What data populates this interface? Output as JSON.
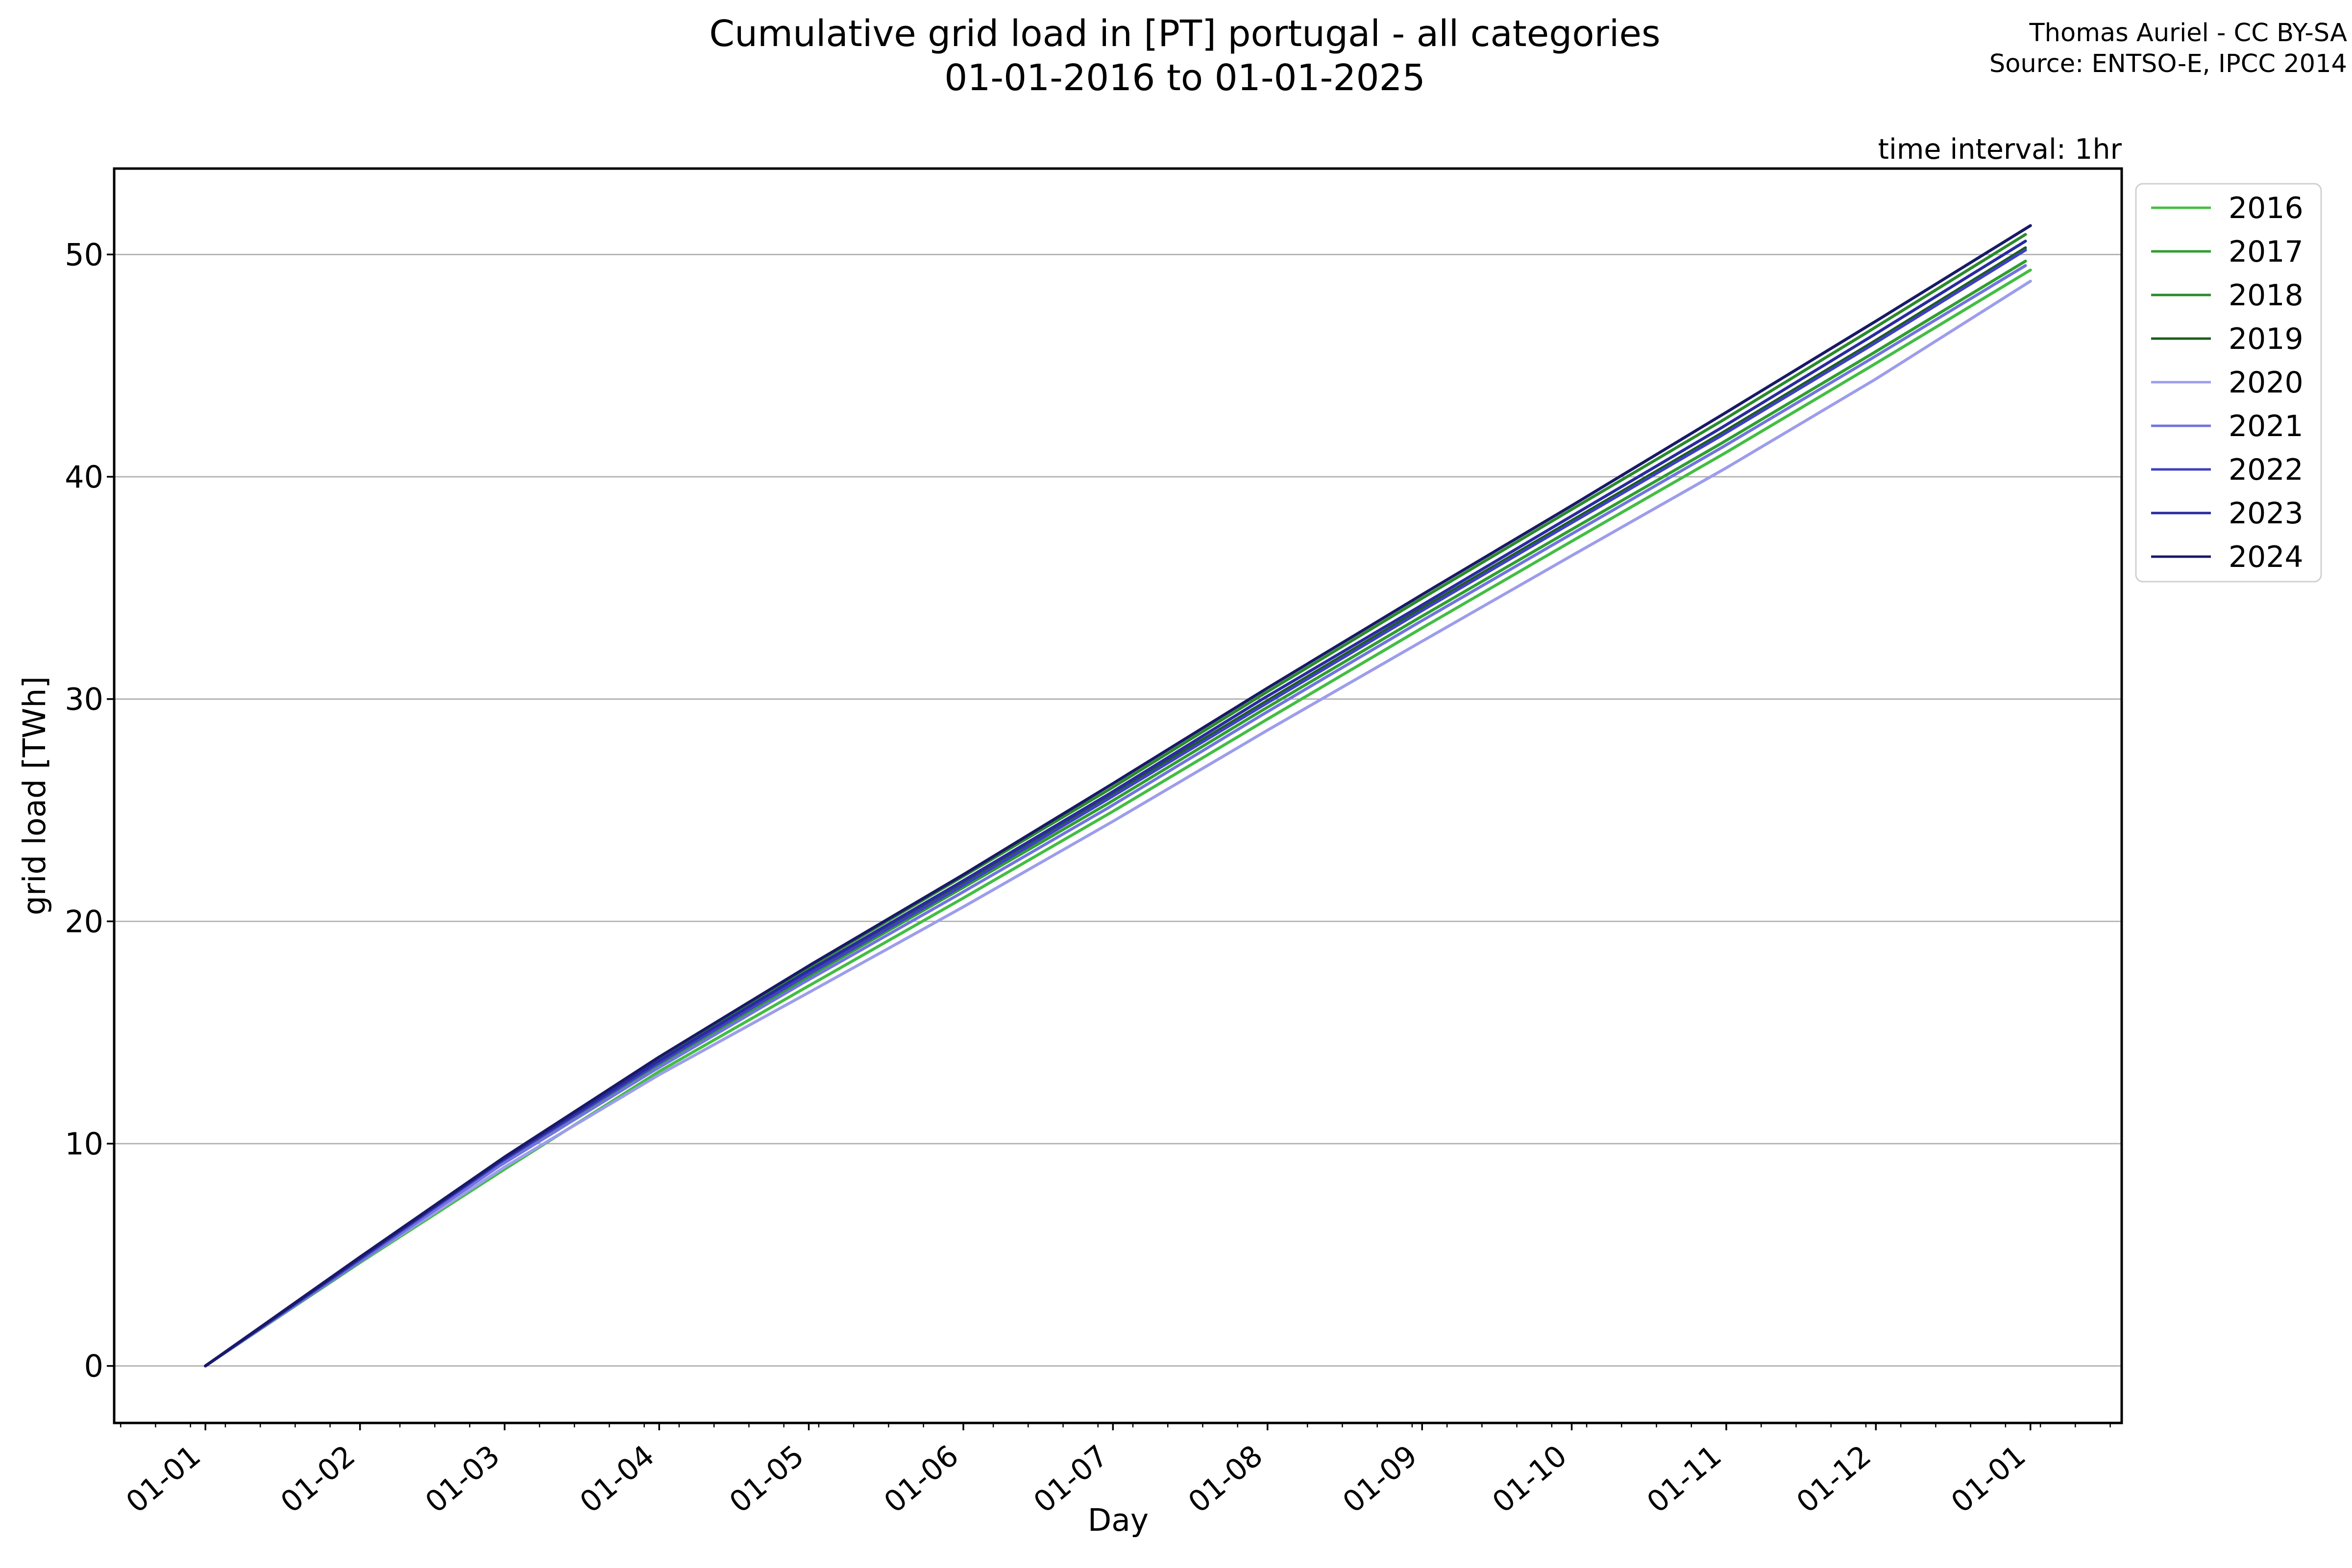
{
  "figure": {
    "title_line1": "Cumulative grid load in [PT] portugal - all categories",
    "title_line2": "01-01-2016 to 01-01-2025",
    "attribution_line1": "Thomas Auriel - CC BY-SA",
    "attribution_line2": "Source: ENTSO-E, IPCC 2014",
    "annotation": "time interval: 1hr"
  },
  "chart_data": {
    "type": "line",
    "title": "Cumulative grid load in [PT] portugal - all categories 01-01-2016 to 01-01-2025",
    "xlabel": "Day",
    "ylabel": "grid load [TWh]",
    "x_tick_labels": [
      "01-01",
      "01-02",
      "01-03",
      "01-04",
      "01-05",
      "01-06",
      "01-07",
      "01-08",
      "01-09",
      "01-10",
      "01-11",
      "01-12",
      "01-01"
    ],
    "x_tick_days": [
      0,
      31,
      60,
      91,
      121,
      152,
      182,
      213,
      244,
      274,
      305,
      335,
      366
    ],
    "y_ticks": [
      0,
      10,
      20,
      30,
      40,
      50
    ],
    "y_tick_labels": [
      "0",
      "10",
      "20",
      "30",
      "40",
      "50"
    ],
    "xlim_days": [
      -18.3,
      384.3
    ],
    "ylim": [
      -2.565,
      53.865
    ],
    "grid": "horizontal gridlines at y ticks",
    "grid_color": "#b0b0b0",
    "legend_position": "outside upper right",
    "minor_x_tick_interval_days": 7,
    "month_start_days_leap": [
      0,
      31,
      60,
      91,
      121,
      152,
      182,
      213,
      244,
      274,
      305,
      335,
      366
    ],
    "month_start_days_common": [
      0,
      31,
      59,
      90,
      120,
      151,
      181,
      212,
      243,
      273,
      304,
      334,
      365
    ],
    "series": [
      {
        "name": "2016",
        "color": "#44bd44",
        "leap_year": true,
        "cumulative_grid_load_twh": [
          0,
          4.65,
          8.85,
          13.25,
          17.1,
          21.05,
          24.95,
          29.1,
          33.2,
          37.1,
          41.1,
          45.1,
          49.3
        ]
      },
      {
        "name": "2017",
        "color": "#2f9e2f",
        "leap_year": false,
        "cumulative_grid_load_twh": [
          0,
          4.75,
          9.05,
          13.4,
          17.4,
          21.4,
          25.3,
          29.5,
          33.6,
          37.5,
          41.5,
          45.5,
          49.7
        ]
      },
      {
        "name": "2018",
        "color": "#2b8a2b",
        "leap_year": false,
        "cumulative_grid_load_twh": [
          0,
          4.8,
          9.2,
          13.7,
          17.8,
          21.9,
          25.9,
          30.2,
          34.4,
          38.4,
          42.5,
          46.6,
          50.9
        ]
      },
      {
        "name": "2019",
        "color": "#1c5f1c",
        "leap_year": false,
        "cumulative_grid_load_twh": [
          0,
          4.8,
          9.15,
          13.55,
          17.55,
          21.6,
          25.6,
          29.8,
          33.95,
          37.9,
          41.95,
          46.0,
          50.3
        ]
      },
      {
        "name": "2020",
        "color": "#9d9dec",
        "leap_year": true,
        "cumulative_grid_load_twh": [
          0,
          4.7,
          8.95,
          13.1,
          16.8,
          20.65,
          24.5,
          28.6,
          32.6,
          36.45,
          40.4,
          44.4,
          48.8
        ]
      },
      {
        "name": "2021",
        "color": "#7173de",
        "leap_year": false,
        "cumulative_grid_load_twh": [
          0,
          4.7,
          9.0,
          13.3,
          17.25,
          21.2,
          25.1,
          29.3,
          33.4,
          37.3,
          41.3,
          45.3,
          49.5
        ]
      },
      {
        "name": "2022",
        "color": "#4040c0",
        "leap_year": false,
        "cumulative_grid_load_twh": [
          0,
          4.8,
          9.15,
          13.5,
          17.5,
          21.5,
          25.5,
          29.7,
          33.85,
          37.8,
          41.85,
          45.9,
          50.2
        ]
      },
      {
        "name": "2023",
        "color": "#2a2aa0",
        "leap_year": false,
        "cumulative_grid_load_twh": [
          0,
          4.85,
          9.2,
          13.6,
          17.65,
          21.7,
          25.7,
          30.0,
          34.1,
          38.1,
          42.2,
          46.3,
          50.6
        ]
      },
      {
        "name": "2024",
        "color": "#191968",
        "leap_year": true,
        "cumulative_grid_load_twh": [
          0,
          4.9,
          9.4,
          13.9,
          18.0,
          22.1,
          26.2,
          30.5,
          34.7,
          38.7,
          42.9,
          47.0,
          51.3
        ]
      }
    ]
  }
}
